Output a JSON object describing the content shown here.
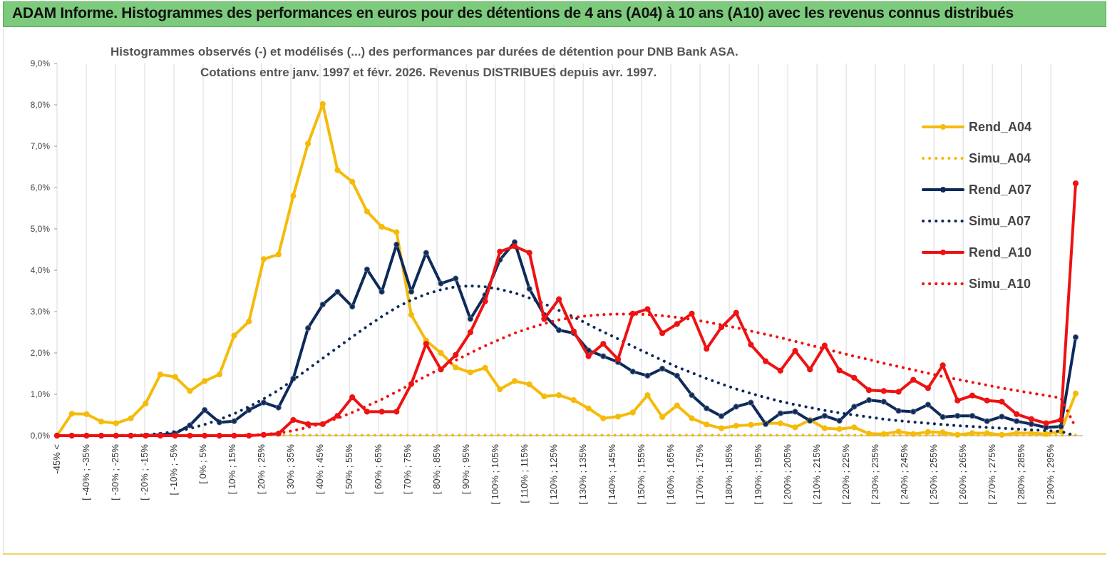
{
  "banner": {
    "title": "ADAM Informe. Histogrammes des performances en euros pour des détentions de 4 ans (A04) à 10 ans (A10) avec les revenus connus distribués"
  },
  "colors": {
    "banner": "#7ccb7c",
    "a04": "#f5bb0b",
    "a07": "#0d2a5a",
    "a10": "#ee1212",
    "grid": "#d9d9d9"
  },
  "chart_data": {
    "type": "line",
    "title_line1": "Histogrammes observés (-) et modélisés (...) des performances par durées de détention pour DNB Bank ASA.",
    "title_line2": "Cotations entre janv. 1997 et févr. 2026. Revenus DISTRIBUES depuis avr. 1997.",
    "ylim": [
      0,
      9
    ],
    "y_ticks": [
      "0,0%",
      "1,0%",
      "2,0%",
      "3,0%",
      "4,0%",
      "5,0%",
      "6,0%",
      "7,0%",
      "8,0%",
      "9,0%"
    ],
    "x_labels": [
      "-45% <",
      "[ -40% ; -35%",
      "[ -30% ; -25%",
      "[ -20% ; -15%",
      "[ -10% ; -5%",
      "[ 0% ; 5%",
      "[ 10% ; 15%",
      "[ 20% ; 25%",
      "[ 30% ; 35%",
      "[ 40% ; 45%",
      "[ 50% ; 55%",
      "[ 60% ; 65%",
      "[ 70% ; 75%",
      "[ 80% ; 85%",
      "[ 90% ; 95%",
      "[ 100% ; 105%",
      "[ 110% ; 115%",
      "[ 120% ; 125%",
      "[ 130% ; 135%",
      "[ 140% ; 145%",
      "[ 150% ; 155%",
      "[ 160% ; 165%",
      "[ 170% ; 175%",
      "[ 180% ; 185%",
      "[ 190% ; 195%",
      "[ 200% ; 205%",
      "[ 210% ; 215%",
      "[ 220% ; 225%",
      "[ 230% ; 235%",
      "[ 240% ; 245%",
      "[ 250% ; 255%",
      "[ 260% ; 265%",
      "[ 270% ; 275%",
      "[ 280% ; 285%",
      "[ 290% ; 295%"
    ],
    "series": [
      {
        "name": "Rend_A04",
        "style": "solid",
        "color": "#f5bb0b",
        "markers": true,
        "values": [
          0.0,
          0.53,
          0.52,
          0.34,
          0.3,
          0.42,
          0.78,
          1.48,
          1.42,
          1.08,
          1.32,
          1.48,
          2.42,
          2.76,
          4.27,
          4.38,
          5.8,
          7.06,
          8.02,
          6.42,
          6.14,
          5.42,
          5.05,
          4.92,
          2.92,
          2.3,
          2.0,
          1.65,
          1.53,
          1.64,
          1.12,
          1.32,
          1.24,
          0.95,
          0.98,
          0.86,
          0.66,
          0.42,
          0.46,
          0.56,
          0.98,
          0.45,
          0.73,
          0.42,
          0.27,
          0.18,
          0.24,
          0.26,
          0.3,
          0.3,
          0.2,
          0.38,
          0.18,
          0.16,
          0.2,
          0.05,
          0.04,
          0.1,
          0.04,
          0.09,
          0.08,
          0.02,
          0.06,
          0.06,
          0.02,
          0.06,
          0.06,
          0.04,
          0.1,
          1.02
        ]
      },
      {
        "name": "Simu_A04",
        "style": "dotted",
        "color": "#f5bb0b",
        "markers": false,
        "values": [
          0,
          0.01,
          0.01,
          0.01,
          0.01,
          0.01,
          0.01,
          0.01,
          0.01,
          0.01,
          0.01,
          0.01,
          0.01,
          0.01,
          0.01,
          0.01,
          0.01,
          0.01,
          0.01,
          0.01,
          0.01,
          0.01,
          0.01,
          0.01,
          0.01,
          0.01,
          0.01,
          0.01,
          0.01,
          0.01,
          0.01,
          0.01,
          0.01,
          0.01,
          0.01,
          0.01,
          0.01,
          0.01,
          0.01,
          0.01,
          0.01,
          0.01,
          0.01,
          0.01,
          0.01,
          0.01,
          0.01,
          0.01,
          0.01,
          0.01,
          0.01,
          0.01,
          0.01,
          0.01,
          0.01,
          0.01,
          0.01,
          0.01,
          0.01,
          0.01,
          0.01,
          0.01,
          0.01,
          0.01,
          0.01,
          0.01,
          0.01,
          0.01,
          0.01,
          0.01
        ]
      },
      {
        "name": "Rend_A07",
        "style": "solid",
        "color": "#0d2a5a",
        "markers": true,
        "values": [
          0,
          0,
          0,
          0,
          0,
          0,
          0,
          0.02,
          0.05,
          0.25,
          0.62,
          0.32,
          0.35,
          0.62,
          0.8,
          0.68,
          1.38,
          2.6,
          3.17,
          3.48,
          3.12,
          4.02,
          3.48,
          4.62,
          3.48,
          4.42,
          3.68,
          3.8,
          2.82,
          3.4,
          4.25,
          4.68,
          3.55,
          2.92,
          2.55,
          2.48,
          2.06,
          1.92,
          1.78,
          1.55,
          1.45,
          1.62,
          1.45,
          0.98,
          0.66,
          0.47,
          0.7,
          0.8,
          0.28,
          0.54,
          0.58,
          0.36,
          0.48,
          0.36,
          0.7,
          0.86,
          0.82,
          0.6,
          0.58,
          0.75,
          0.45,
          0.48,
          0.48,
          0.35,
          0.46,
          0.35,
          0.28,
          0.2,
          0.22,
          2.38
        ]
      },
      {
        "name": "Simu_A07",
        "style": "dotted",
        "color": "#0d2a5a",
        "markers": false,
        "values": [
          0,
          0,
          0,
          0,
          0,
          0.01,
          0.02,
          0.05,
          0.1,
          0.17,
          0.27,
          0.39,
          0.53,
          0.7,
          0.89,
          1.1,
          1.35,
          1.61,
          1.87,
          2.13,
          2.39,
          2.64,
          2.88,
          3.1,
          3.28,
          3.42,
          3.53,
          3.6,
          3.62,
          3.6,
          3.54,
          3.45,
          3.33,
          3.19,
          3.03,
          2.87,
          2.69,
          2.51,
          2.34,
          2.16,
          1.99,
          1.82,
          1.66,
          1.52,
          1.38,
          1.25,
          1.13,
          1.02,
          0.92,
          0.83,
          0.75,
          0.68,
          0.61,
          0.55,
          0.5,
          0.45,
          0.4,
          0.36,
          0.33,
          0.3,
          0.27,
          0.24,
          0.22,
          0.2,
          0.18,
          0.16,
          0.14,
          0.12,
          0.1,
          0.0
        ]
      },
      {
        "name": "Rend_A10",
        "style": "solid",
        "color": "#ee1212",
        "markers": true,
        "values": [
          0,
          0,
          0,
          0,
          0,
          0,
          0,
          0,
          0,
          0,
          0,
          0,
          0,
          0,
          0.02,
          0.05,
          0.38,
          0.28,
          0.28,
          0.48,
          0.93,
          0.58,
          0.58,
          0.58,
          1.25,
          2.22,
          1.6,
          1.95,
          2.5,
          3.25,
          4.45,
          4.58,
          4.42,
          2.82,
          3.3,
          2.52,
          1.92,
          2.22,
          1.85,
          2.95,
          3.06,
          2.48,
          2.7,
          2.95,
          2.1,
          2.62,
          2.97,
          2.2,
          1.8,
          1.57,
          2.05,
          1.6,
          2.18,
          1.58,
          1.4,
          1.1,
          1.08,
          1.06,
          1.35,
          1.15,
          1.7,
          0.85,
          0.97,
          0.85,
          0.82,
          0.52,
          0.4,
          0.3,
          0.38,
          6.1
        ]
      },
      {
        "name": "Simu_A10",
        "style": "dotted",
        "color": "#ee1212",
        "markers": false,
        "values": [
          0,
          0,
          0,
          0,
          0,
          0,
          0,
          0,
          0,
          0,
          0,
          0,
          0,
          0.01,
          0.03,
          0.06,
          0.12,
          0.2,
          0.3,
          0.42,
          0.56,
          0.72,
          0.88,
          1.06,
          1.25,
          1.44,
          1.63,
          1.82,
          2.0,
          2.17,
          2.33,
          2.48,
          2.6,
          2.71,
          2.8,
          2.86,
          2.9,
          2.93,
          2.94,
          2.94,
          2.93,
          2.9,
          2.86,
          2.81,
          2.75,
          2.68,
          2.61,
          2.53,
          2.45,
          2.37,
          2.28,
          2.19,
          2.1,
          2.01,
          1.92,
          1.84,
          1.75,
          1.67,
          1.59,
          1.51,
          1.43,
          1.36,
          1.29,
          1.22,
          1.15,
          1.09,
          1.03,
          0.97,
          0.91,
          0.2
        ]
      }
    ],
    "legend": [
      "Rend_A04",
      "Simu_A04",
      "Rend_A07",
      "Simu_A07",
      "Rend_A10",
      "Simu_A10"
    ],
    "legend_position": "top-right",
    "grid": "vertical"
  }
}
